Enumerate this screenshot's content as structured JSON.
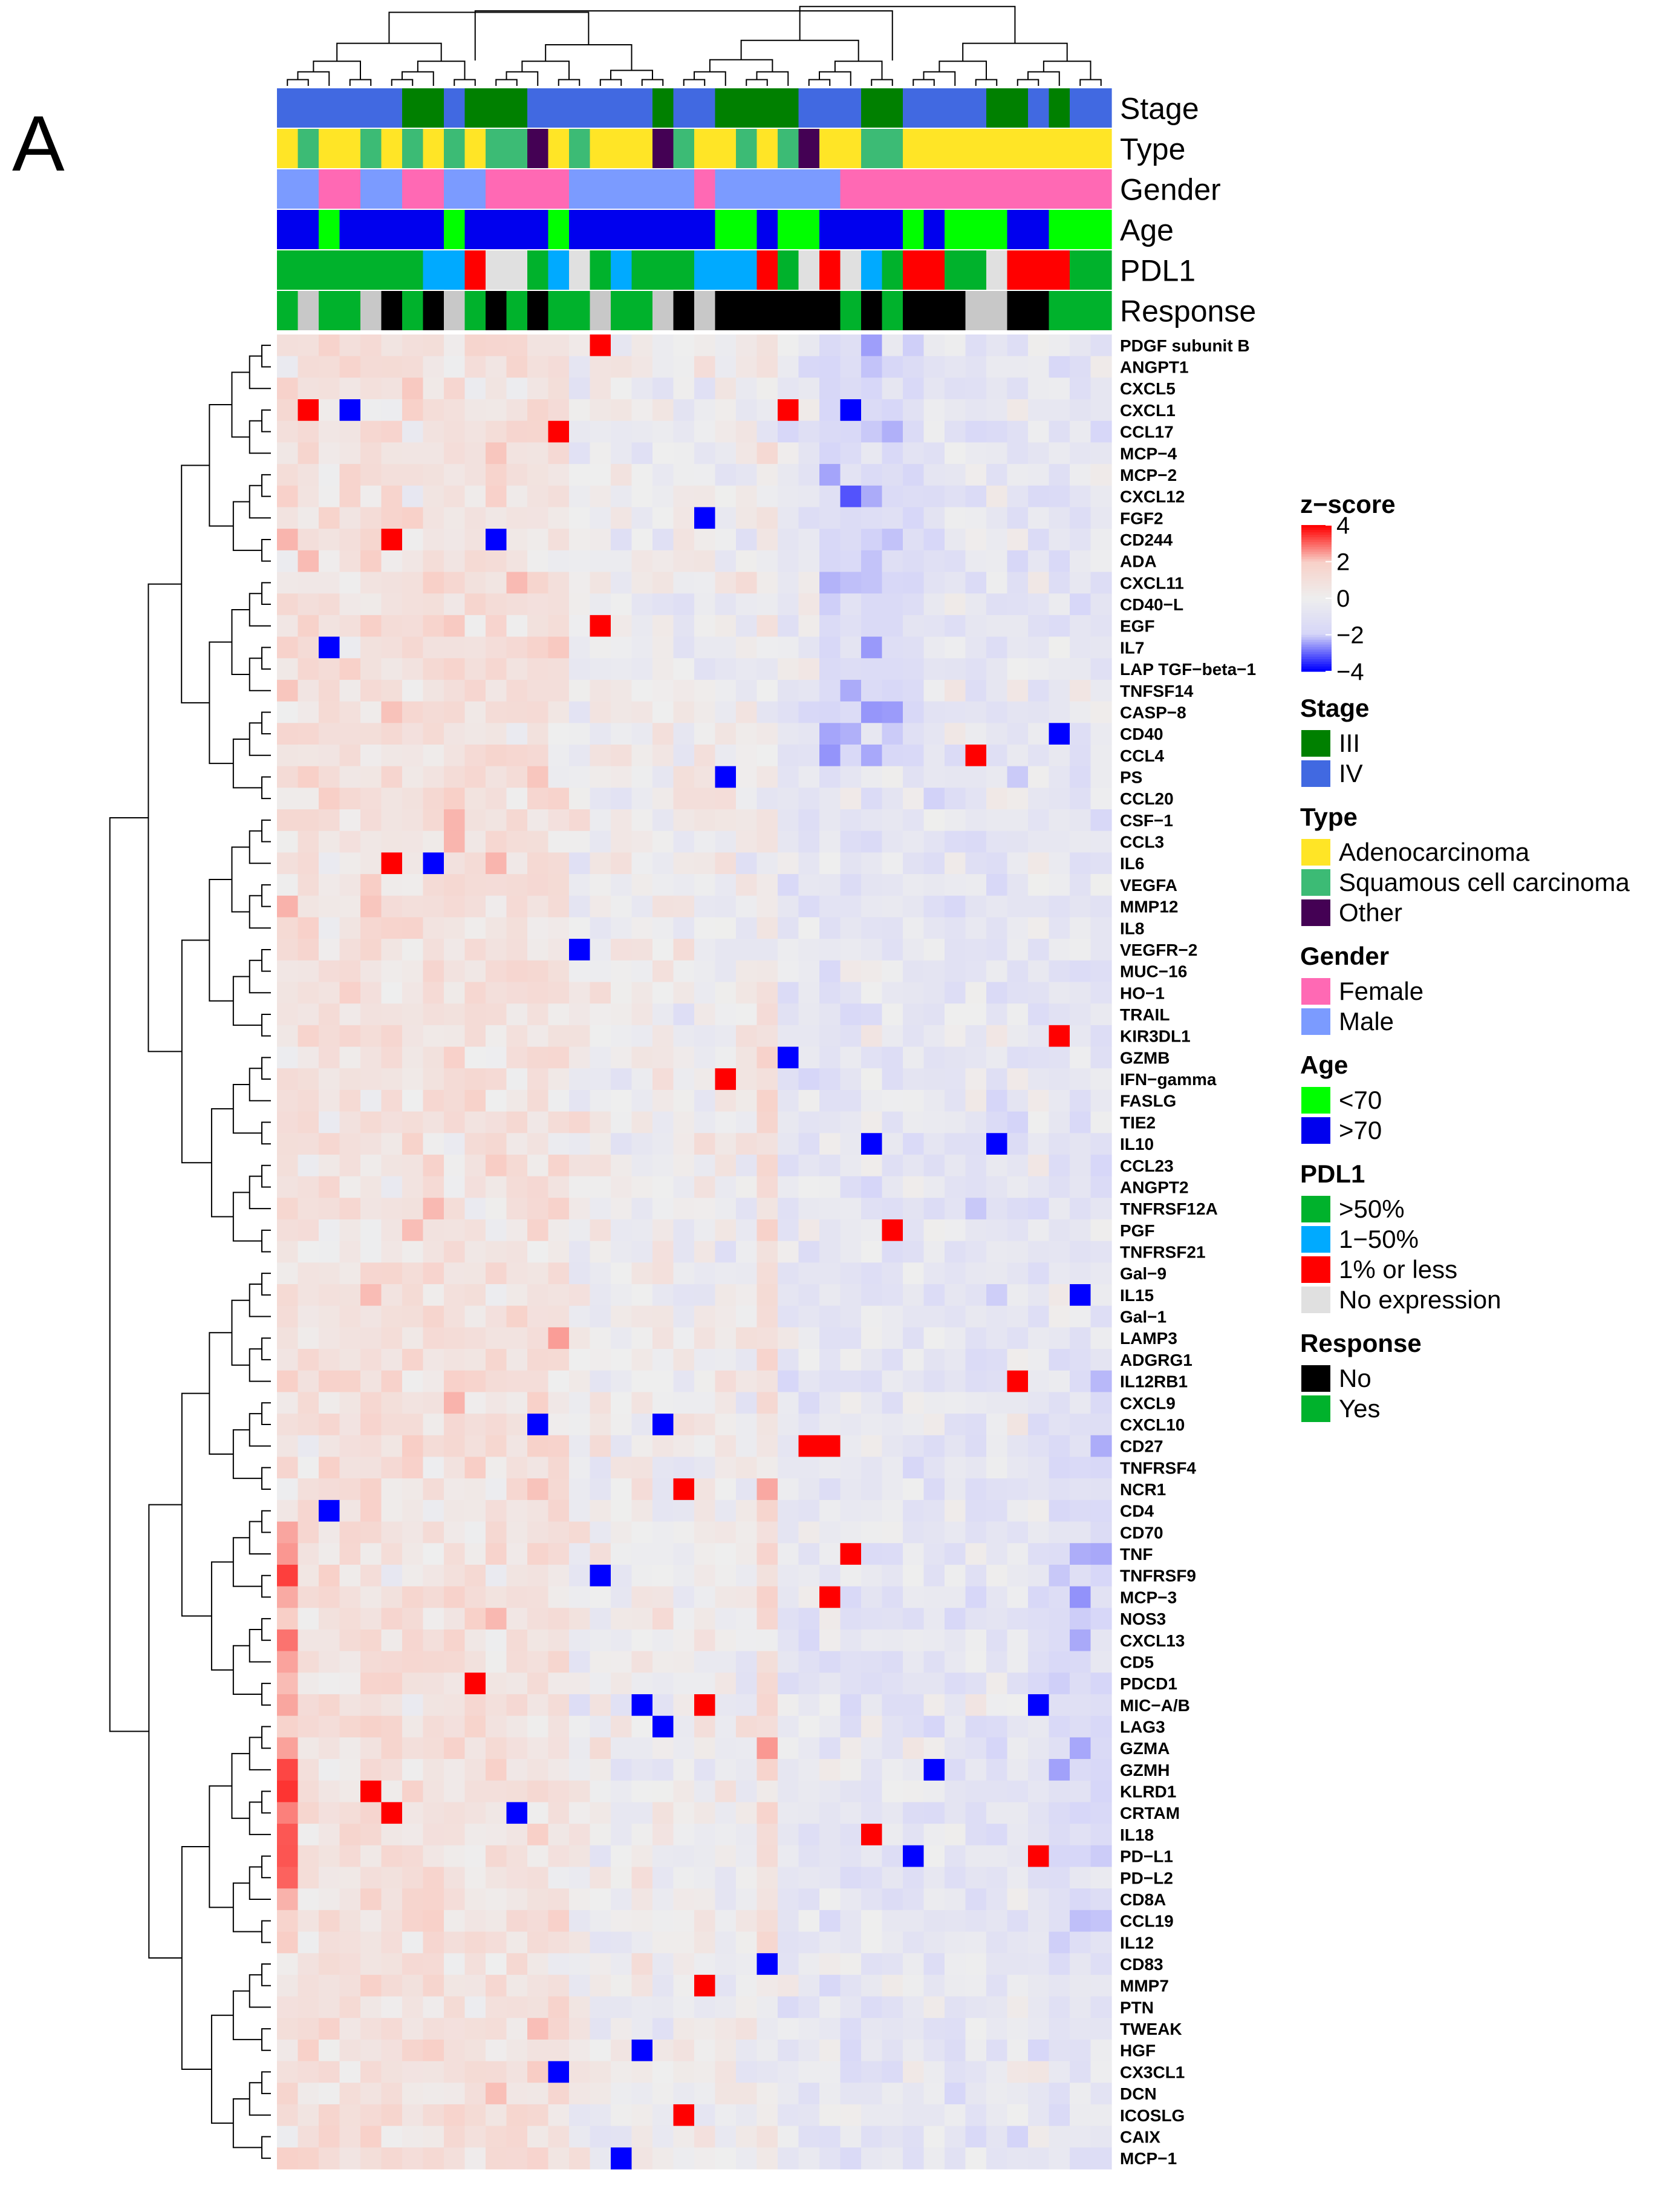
{
  "panel_label": "A",
  "chart_data": {
    "type": "heatmap",
    "title": "",
    "annotation_tracks": [
      "Stage",
      "Type",
      "Gender",
      "Age",
      "PDL1",
      "Response"
    ],
    "annotation_track_keys": [
      "stage",
      "type",
      "gender",
      "age",
      "pdl1",
      "response"
    ],
    "genes": [
      "PDGF subunit B",
      "ANGPT1",
      "CXCL5",
      "CXCL1",
      "CCL17",
      "MCP−4",
      "MCP−2",
      "CXCL12",
      "FGF2",
      "CD244",
      "ADA",
      "CXCL11",
      "CD40−L",
      "EGF",
      "IL7",
      "LAP TGF−beta−1",
      "TNFSF14",
      "CASP−8",
      "CD40",
      "CCL4",
      "PS",
      "CCL20",
      "CSF−1",
      "CCL3",
      "IL6",
      "VEGFA",
      "MMP12",
      "IL8",
      "VEGFR−2",
      "MUC−16",
      "HO−1",
      "TRAIL",
      "KIR3DL1",
      "GZMB",
      "IFN−gamma",
      "FASLG",
      "TIE2",
      "IL10",
      "CCL23",
      "ANGPT2",
      "TNFRSF12A",
      "PGF",
      "TNFRSF21",
      "Gal−9",
      "IL15",
      "Gal−1",
      "LAMP3",
      "ADGRG1",
      "IL12RB1",
      "CXCL9",
      "CXCL10",
      "CD27",
      "TNFRSF4",
      "NCR1",
      "CD4",
      "CD70",
      "TNF",
      "TNFRSF9",
      "MCP−3",
      "NOS3",
      "CXCL13",
      "CD5",
      "PDCD1",
      "MIC−A/B",
      "LAG3",
      "GZMA",
      "GZMH",
      "KLRD1",
      "CRTAM",
      "IL18",
      "PD−L1",
      "PD−L2",
      "CD8A",
      "CCL19",
      "IL12",
      "CD83",
      "MMP7",
      "PTN",
      "TWEAK",
      "HGF",
      "CX3CL1",
      "DCN",
      "ICOSLG",
      "CAIX",
      "MCP−1"
    ],
    "n_samples": 40,
    "samples": [
      {
        "stage": "IV",
        "type": "Adenocarcinoma",
        "gender": "Male",
        "age": ">70",
        "pdl1": ">50%",
        "response": "Yes"
      },
      {
        "stage": "IV",
        "type": "Squamous cell carcinoma",
        "gender": "Male",
        "age": ">70",
        "pdl1": ">50%",
        "response": "No expression"
      },
      {
        "stage": "IV",
        "type": "Adenocarcinoma",
        "gender": "Female",
        "age": "<70",
        "pdl1": ">50%",
        "response": "Yes"
      },
      {
        "stage": "IV",
        "type": "Adenocarcinoma",
        "gender": "Female",
        "age": ">70",
        "pdl1": ">50%",
        "response": "Yes"
      },
      {
        "stage": "IV",
        "type": "Squamous cell carcinoma",
        "gender": "Male",
        "age": ">70",
        "pdl1": ">50%",
        "response": "No expression"
      },
      {
        "stage": "IV",
        "type": "Adenocarcinoma",
        "gender": "Male",
        "age": ">70",
        "pdl1": ">50%",
        "response": "No"
      },
      {
        "stage": "III",
        "type": "Squamous cell carcinoma",
        "gender": "Female",
        "age": ">70",
        "pdl1": ">50%",
        "response": "Yes"
      },
      {
        "stage": "III",
        "type": "Adenocarcinoma",
        "gender": "Female",
        "age": ">70",
        "pdl1": "1−50%",
        "response": "No"
      },
      {
        "stage": "IV",
        "type": "Squamous cell carcinoma",
        "gender": "Male",
        "age": "<70",
        "pdl1": "1−50%",
        "response": "No expression"
      },
      {
        "stage": "III",
        "type": "Adenocarcinoma",
        "gender": "Male",
        "age": ">70",
        "pdl1": "1% or less",
        "response": "Yes"
      },
      {
        "stage": "III",
        "type": "Squamous cell carcinoma",
        "gender": "Female",
        "age": ">70",
        "pdl1": "No expression",
        "response": "No"
      },
      {
        "stage": "III",
        "type": "Squamous cell carcinoma",
        "gender": "Female",
        "age": ">70",
        "pdl1": "No expression",
        "response": "Yes"
      },
      {
        "stage": "IV",
        "type": "Other",
        "gender": "Female",
        "age": ">70",
        "pdl1": ">50%",
        "response": "No"
      },
      {
        "stage": "IV",
        "type": "Adenocarcinoma",
        "gender": "Female",
        "age": "<70",
        "pdl1": "1−50%",
        "response": "Yes"
      },
      {
        "stage": "IV",
        "type": "Squamous cell carcinoma",
        "gender": "Male",
        "age": ">70",
        "pdl1": "No expression",
        "response": "Yes"
      },
      {
        "stage": "IV",
        "type": "Adenocarcinoma",
        "gender": "Male",
        "age": ">70",
        "pdl1": ">50%",
        "response": "No expression"
      },
      {
        "stage": "IV",
        "type": "Adenocarcinoma",
        "gender": "Male",
        "age": ">70",
        "pdl1": "1−50%",
        "response": "Yes"
      },
      {
        "stage": "IV",
        "type": "Adenocarcinoma",
        "gender": "Male",
        "age": ">70",
        "pdl1": ">50%",
        "response": "Yes"
      },
      {
        "stage": "III",
        "type": "Other",
        "gender": "Male",
        "age": ">70",
        "pdl1": ">50%",
        "response": "No expression"
      },
      {
        "stage": "IV",
        "type": "Squamous cell carcinoma",
        "gender": "Male",
        "age": ">70",
        "pdl1": ">50%",
        "response": "No"
      },
      {
        "stage": "IV",
        "type": "Adenocarcinoma",
        "gender": "Female",
        "age": ">70",
        "pdl1": "1−50%",
        "response": "No expression"
      },
      {
        "stage": "III",
        "type": "Adenocarcinoma",
        "gender": "Male",
        "age": "<70",
        "pdl1": "1−50%",
        "response": "No"
      },
      {
        "stage": "III",
        "type": "Squamous cell carcinoma",
        "gender": "Male",
        "age": "<70",
        "pdl1": "1−50%",
        "response": "No"
      },
      {
        "stage": "III",
        "type": "Adenocarcinoma",
        "gender": "Male",
        "age": ">70",
        "pdl1": "1% or less",
        "response": "No"
      },
      {
        "stage": "III",
        "type": "Squamous cell carcinoma",
        "gender": "Male",
        "age": "<70",
        "pdl1": ">50%",
        "response": "No"
      },
      {
        "stage": "IV",
        "type": "Other",
        "gender": "Male",
        "age": "<70",
        "pdl1": "No expression",
        "response": "No"
      },
      {
        "stage": "IV",
        "type": "Adenocarcinoma",
        "gender": "Male",
        "age": ">70",
        "pdl1": "1% or less",
        "response": "No"
      },
      {
        "stage": "IV",
        "type": "Adenocarcinoma",
        "gender": "Female",
        "age": ">70",
        "pdl1": "No expression",
        "response": "Yes"
      },
      {
        "stage": "III",
        "type": "Squamous cell carcinoma",
        "gender": "Female",
        "age": ">70",
        "pdl1": "1−50%",
        "response": "No"
      },
      {
        "stage": "III",
        "type": "Squamous cell carcinoma",
        "gender": "Female",
        "age": ">70",
        "pdl1": ">50%",
        "response": "Yes"
      },
      {
        "stage": "IV",
        "type": "Adenocarcinoma",
        "gender": "Female",
        "age": "<70",
        "pdl1": "1% or less",
        "response": "No"
      },
      {
        "stage": "IV",
        "type": "Adenocarcinoma",
        "gender": "Female",
        "age": ">70",
        "pdl1": "1% or less",
        "response": "No"
      },
      {
        "stage": "IV",
        "type": "Adenocarcinoma",
        "gender": "Female",
        "age": "<70",
        "pdl1": ">50%",
        "response": "No"
      },
      {
        "stage": "IV",
        "type": "Adenocarcinoma",
        "gender": "Female",
        "age": "<70",
        "pdl1": ">50%",
        "response": "No expression"
      },
      {
        "stage": "III",
        "type": "Adenocarcinoma",
        "gender": "Female",
        "age": "<70",
        "pdl1": "No expression",
        "response": "No expression"
      },
      {
        "stage": "III",
        "type": "Adenocarcinoma",
        "gender": "Female",
        "age": ">70",
        "pdl1": "1% or less",
        "response": "No"
      },
      {
        "stage": "IV",
        "type": "Adenocarcinoma",
        "gender": "Female",
        "age": ">70",
        "pdl1": "1% or less",
        "response": "No"
      },
      {
        "stage": "III",
        "type": "Adenocarcinoma",
        "gender": "Female",
        "age": "<70",
        "pdl1": "1% or less",
        "response": "Yes"
      },
      {
        "stage": "IV",
        "type": "Adenocarcinoma",
        "gender": "Female",
        "age": "<70",
        "pdl1": ">50%",
        "response": "Yes"
      },
      {
        "stage": "IV",
        "type": "Adenocarcinoma",
        "gender": "Female",
        "age": "<70",
        "pdl1": ">50%",
        "response": "Yes"
      }
    ],
    "values_note": "z-score matrix: rows = genes, columns = samples; approximated (pseudo-random with visible cluster patterns)",
    "color_scale": {
      "title": "z−score",
      "min": -4,
      "max": 4,
      "ticks": [
        4,
        2,
        0,
        -2,
        -4
      ],
      "tick_labels": [
        "4",
        "2",
        "0",
        "−2",
        "−4"
      ],
      "colors": [
        "#0000ff",
        "#d6d6f8",
        "#eeeeee",
        "#f8d0c8",
        "#ff0000"
      ]
    },
    "legends": [
      {
        "title": "Stage",
        "key": "stage",
        "items": [
          {
            "label": "III",
            "color": "#008000"
          },
          {
            "label": "IV",
            "color": "#4169e1"
          }
        ]
      },
      {
        "title": "Type",
        "key": "type",
        "items": [
          {
            "label": "Adenocarcinoma",
            "color": "#ffe526"
          },
          {
            "label": "Squamous cell carcinoma",
            "color": "#3cbb75"
          },
          {
            "label": "Other",
            "color": "#440154"
          }
        ]
      },
      {
        "title": "Gender",
        "key": "gender",
        "items": [
          {
            "label": "Female",
            "color": "#ff69b4"
          },
          {
            "label": "Male",
            "color": "#7b9bff"
          }
        ]
      },
      {
        "title": "Age",
        "key": "age",
        "items": [
          {
            "label": "<70",
            "color": "#00ff00"
          },
          {
            "label": ">70",
            "color": "#0000ee"
          }
        ]
      },
      {
        "title": "PDL1",
        "key": "pdl1",
        "items": [
          {
            "label": ">50%",
            "color": "#00b22c"
          },
          {
            "label": "1−50%",
            "color": "#00aaff"
          },
          {
            "label": "1% or less",
            "color": "#ff0000"
          },
          {
            "label": "No expression",
            "color": "#e0e0e0"
          }
        ]
      },
      {
        "title": "Response",
        "key": "response",
        "items": [
          {
            "label": "No",
            "color": "#000000"
          },
          {
            "label": "Yes",
            "color": "#00b22c"
          }
        ]
      }
    ]
  }
}
